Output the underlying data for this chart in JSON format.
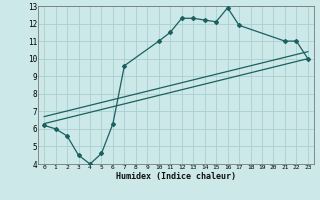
{
  "xlabel": "Humidex (Indice chaleur)",
  "bg_color": "#cce8e8",
  "grid_color": "#aacfcf",
  "line_color": "#1a6060",
  "xlim": [
    -0.5,
    23.5
  ],
  "ylim": [
    4,
    13
  ],
  "xticks": [
    0,
    1,
    2,
    3,
    4,
    5,
    6,
    7,
    8,
    9,
    10,
    11,
    12,
    13,
    14,
    15,
    16,
    17,
    18,
    19,
    20,
    21,
    22,
    23
  ],
  "yticks": [
    4,
    5,
    6,
    7,
    8,
    9,
    10,
    11,
    12,
    13
  ],
  "line1_x": [
    0,
    1,
    2,
    3,
    4,
    5,
    6,
    7,
    10,
    11,
    12,
    13,
    14,
    15,
    16,
    17,
    21,
    22,
    23
  ],
  "line1_y": [
    6.2,
    6.0,
    5.6,
    4.5,
    4.0,
    4.6,
    6.3,
    9.6,
    11.0,
    11.5,
    12.3,
    12.3,
    12.2,
    12.1,
    12.9,
    11.9,
    11.0,
    11.0,
    10.0
  ],
  "line2_x": [
    0,
    23
  ],
  "line2_y": [
    6.3,
    10.0
  ],
  "line3_x": [
    0,
    23
  ],
  "line3_y": [
    6.7,
    10.4
  ]
}
